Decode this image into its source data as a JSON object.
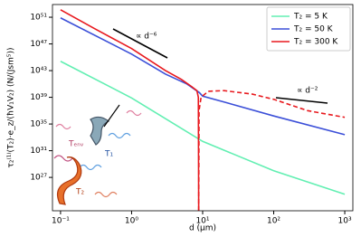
{
  "chart_data": {
    "type": "line",
    "log_x": true,
    "log_y": true,
    "xlabel": "d (μm)",
    "ylabel": "τ₂⁽¹⁾(T₂)·e_z/(ħV₁V₂)   (N/(Jsm⁵))",
    "xlim": [
      0.077,
      1300
    ],
    "ylim": [
      1e+22,
      8e+52
    ],
    "xticks": [
      {
        "value": 0.1,
        "label": "10⁻¹"
      },
      {
        "value": 1,
        "label": "10⁰"
      },
      {
        "value": 10,
        "label": "10¹"
      },
      {
        "value": 100,
        "label": "10²"
      },
      {
        "value": 1000,
        "label": "10³"
      }
    ],
    "yticks": [
      {
        "value": 1e+27,
        "label": "10²⁷"
      },
      {
        "value": 1e+31,
        "label": "10³¹"
      },
      {
        "value": 1e+35,
        "label": "10³⁵"
      },
      {
        "value": 1e+39,
        "label": "10³⁹"
      },
      {
        "value": 1e+43,
        "label": "10⁴³"
      },
      {
        "value": 1e+47,
        "label": "10⁴⁷"
      },
      {
        "value": 1e+51,
        "label": "10⁵¹"
      }
    ],
    "legend": "upper right",
    "series": [
      {
        "name": "T₂ = 5 K",
        "color": "#62efb2",
        "x": [
          0.1,
          1,
          10,
          100,
          1000
        ],
        "values": [
          2.5e+44,
          8e+38,
          2.5e+32,
          1e+28,
          3e+24
        ]
      },
      {
        "name": "T₂ = 50 K",
        "color": "#3b4fd8",
        "x": [
          0.1,
          1,
          3,
          6,
          9,
          10,
          20,
          100,
          1000
        ],
        "values": [
          8e+50,
          3e+45,
          3e+42,
          1e+41,
          5e+39,
          1.5e+39,
          2e+38,
          1.6e+36,
          2.5e+33
        ]
      },
      {
        "name": "T₂ = 300 K",
        "color": "#e8191e",
        "x": [
          0.1,
          0.3,
          1,
          3,
          5,
          7,
          8.3,
          8.7,
          8.8
        ],
        "values": [
          1.3e+52,
          2e+49,
          2e+46,
          1e+43,
          5e+41,
          4e+40,
          1e+40,
          1e+39,
          1e+22
        ]
      },
      {
        "color": "#e8191e",
        "dash": true,
        "x": [
          8.8,
          8.9,
          9.5,
          12,
          20,
          50,
          100,
          300,
          1000
        ],
        "values": [
          1e+22,
          1e+37,
          1e+39,
          8e+39,
          1e+40,
          3e+39,
          5e+38,
          1e+37,
          1e+36
        ]
      }
    ],
    "annotations": [
      "∝ d⁻⁶",
      "∝ d⁻²",
      "Tₑₙᵥ",
      "T₁",
      "T₂"
    ]
  }
}
